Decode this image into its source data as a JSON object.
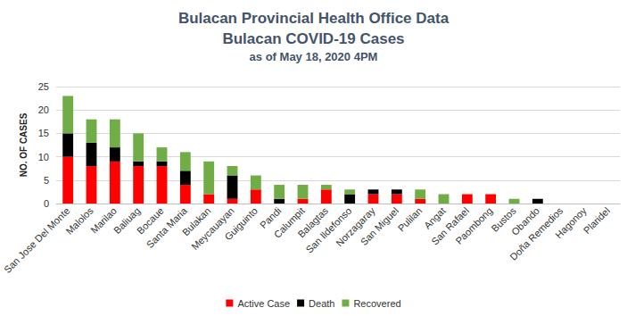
{
  "chart_data": {
    "type": "bar",
    "title": [
      "Bulacan Provincial Health Office Data",
      "Bulacan COVID-19 Cases"
    ],
    "subtitle": "as of May 18, 2020 4PM",
    "y_label": "NO. OF CASES",
    "categories": [
      "San Jose Del Monte",
      "Malolos",
      "Marilao",
      "Baliuag",
      "Bocaue",
      "Santa Maria",
      "Bulakan",
      "Meycauayan",
      "Guiguinto",
      "Pandi",
      "Calumpit",
      "Balagtas",
      "San Ildefonso",
      "Norzagaray",
      "San Miguel",
      "Pulilan",
      "Angat",
      "San Rafael",
      "Paombong",
      "Bustos",
      "Obando",
      "Doña Remedios",
      "Hagonoy",
      "Plaridel"
    ],
    "series": [
      {
        "name": "Active Case",
        "color": "#ff0000",
        "values": [
          10,
          8,
          9,
          8,
          8,
          4,
          2,
          1,
          3,
          0,
          1,
          3,
          0,
          2,
          2,
          1,
          0,
          2,
          2,
          0,
          0,
          0,
          0,
          0
        ]
      },
      {
        "name": "Death",
        "color": "#000000",
        "values": [
          5,
          5,
          3,
          1,
          1,
          3,
          0,
          5,
          0,
          1,
          0,
          0,
          2,
          1,
          1,
          0,
          0,
          0,
          0,
          0,
          1,
          0,
          0,
          0
        ]
      },
      {
        "name": "Recovered",
        "color": "#70ad47",
        "values": [
          8,
          5,
          6,
          6,
          3,
          4,
          7,
          2,
          3,
          3,
          3,
          1,
          1,
          0,
          0,
          2,
          2,
          0,
          0,
          1,
          0,
          0,
          0,
          0
        ]
      }
    ],
    "ylim": [
      0,
      25
    ],
    "yticks": [
      0,
      5,
      10,
      15,
      20,
      25
    ],
    "stacked": true,
    "grid": true,
    "legend": "bottom"
  }
}
